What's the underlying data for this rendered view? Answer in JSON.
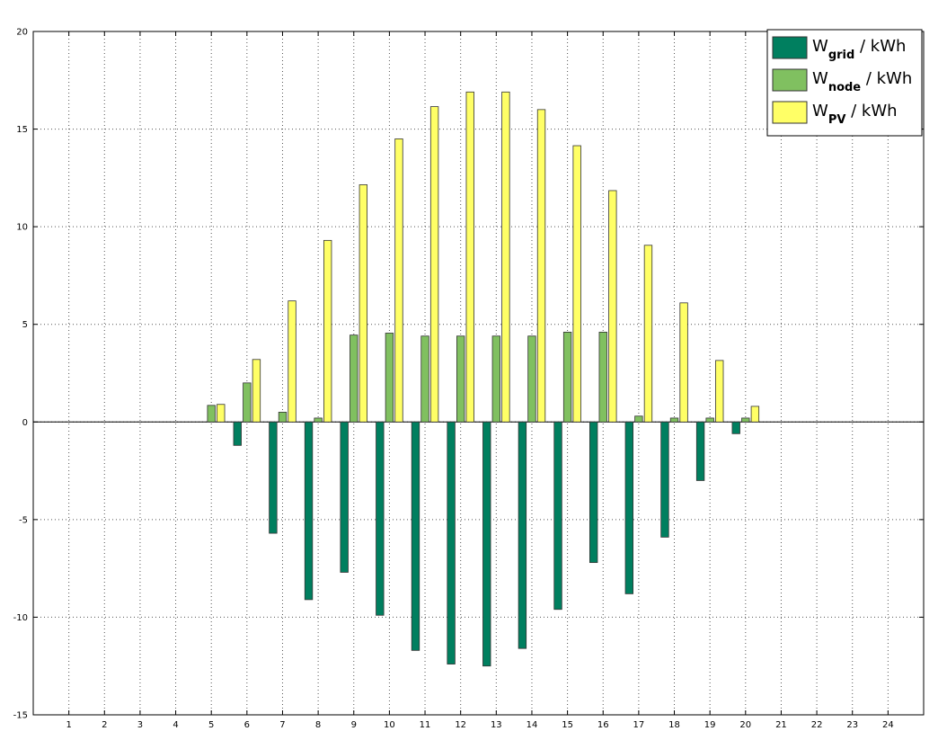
{
  "chart_data": {
    "type": "bar",
    "categories": [
      "1",
      "2",
      "3",
      "4",
      "5",
      "6",
      "7",
      "8",
      "9",
      "10",
      "11",
      "12",
      "13",
      "14",
      "15",
      "16",
      "17",
      "18",
      "19",
      "20",
      "21",
      "22",
      "23",
      "24"
    ],
    "series": [
      {
        "name": "W_grid / kWh",
        "legend_main": "W",
        "legend_sub": "grid",
        "legend_unit": " / kWh",
        "color": "#007f5f",
        "values": [
          0,
          0,
          0,
          0,
          0,
          -1.2,
          -5.7,
          -9.1,
          -7.7,
          -9.9,
          -11.7,
          -12.4,
          -12.5,
          -11.6,
          -9.6,
          -7.2,
          -8.8,
          -5.9,
          -3.0,
          -0.6,
          0,
          0,
          0,
          0
        ]
      },
      {
        "name": "W_node / kWh",
        "legend_main": "W",
        "legend_sub": "node",
        "legend_unit": " / kWh",
        "color": "#80c060",
        "values": [
          0,
          0,
          0,
          0,
          0.85,
          2.0,
          0.5,
          0.2,
          4.45,
          4.55,
          4.4,
          4.4,
          4.4,
          4.4,
          4.6,
          4.6,
          0.3,
          0.2,
          0.2,
          0.2,
          0,
          0,
          0,
          0
        ]
      },
      {
        "name": "W_PV / kWh",
        "legend_main": "W",
        "legend_sub": "PV",
        "legend_unit": " / kWh",
        "color": "#ffff66",
        "values": [
          0,
          0,
          0,
          0,
          0.9,
          3.2,
          6.2,
          9.3,
          12.15,
          14.5,
          16.15,
          16.9,
          16.9,
          16.0,
          14.15,
          11.85,
          9.05,
          6.1,
          3.15,
          0.8,
          0,
          0,
          0,
          0
        ]
      }
    ],
    "ylim": [
      -15,
      20
    ],
    "yticks": [
      -15,
      -10,
      -5,
      0,
      5,
      10,
      15,
      20
    ],
    "xlim": [
      0,
      25
    ],
    "grid": true,
    "legend": "top-right",
    "title": "",
    "xlabel": "",
    "ylabel": ""
  }
}
